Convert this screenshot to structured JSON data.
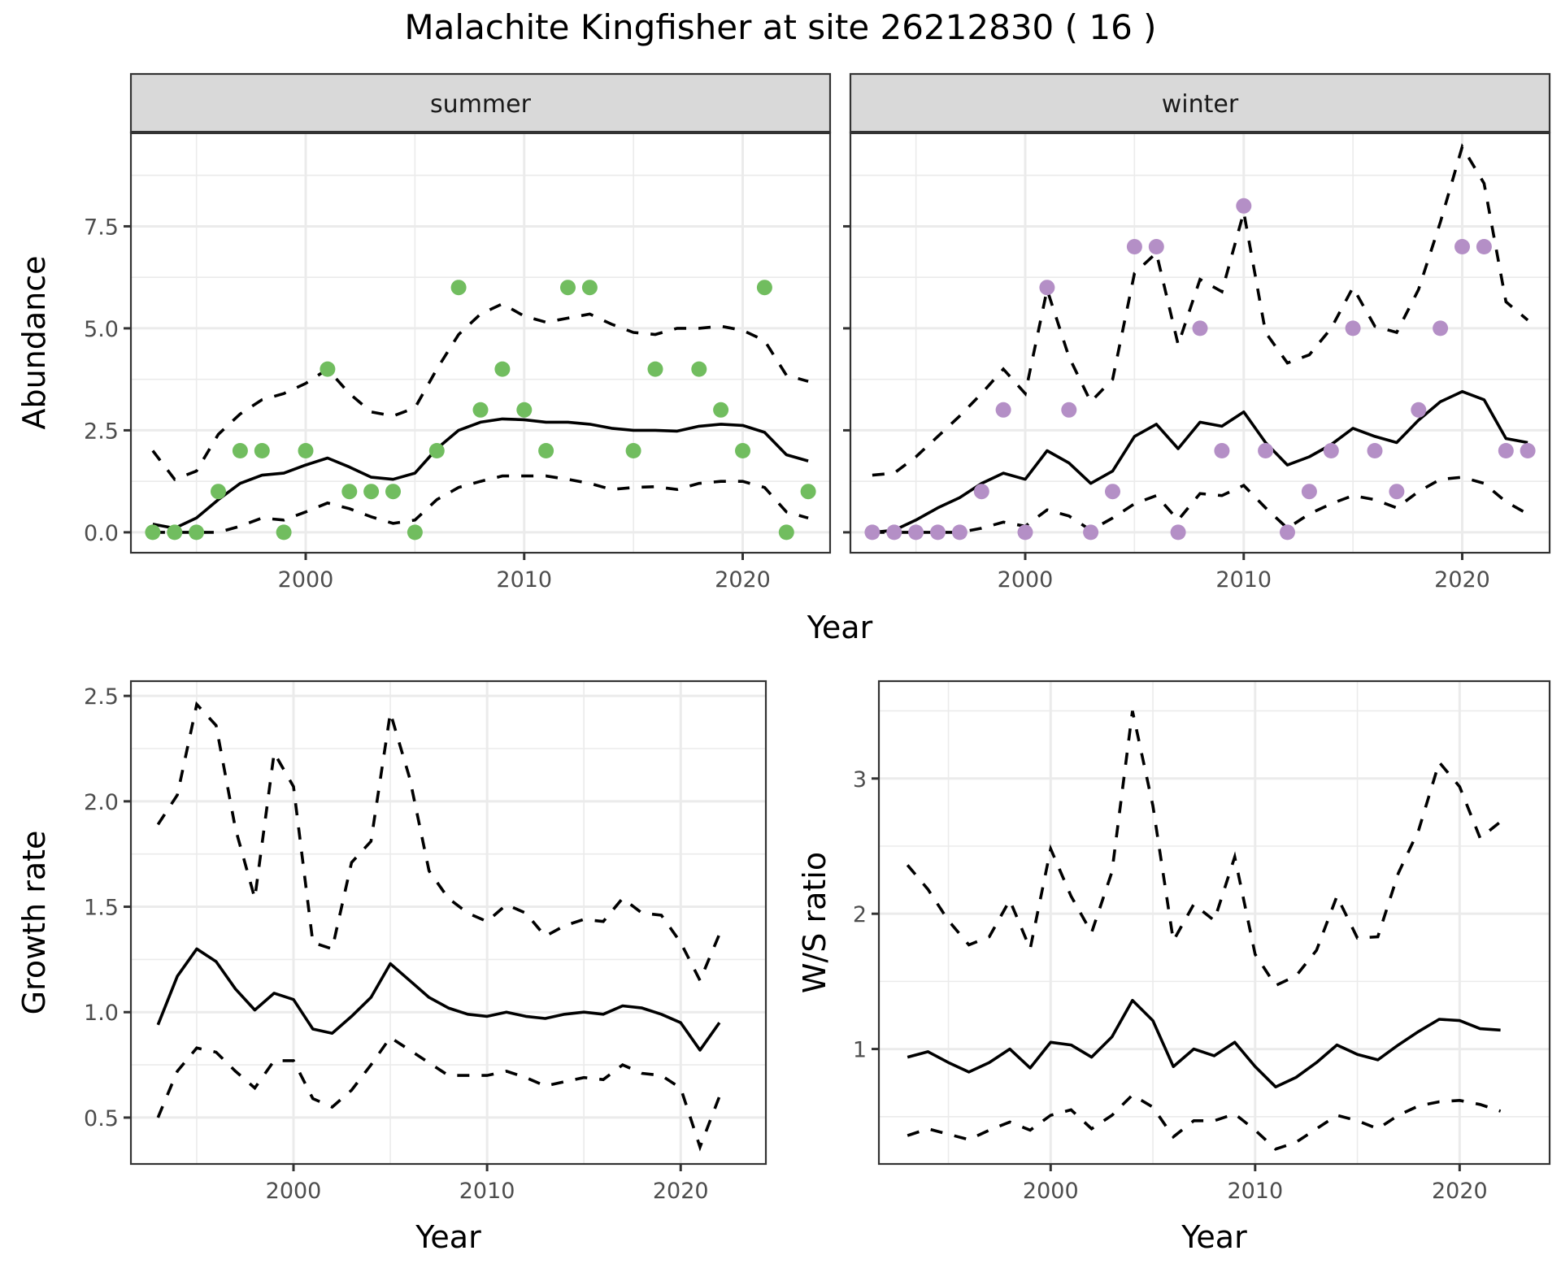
{
  "chart_data": {
    "title": "Malachite Kingfisher at site 26212830 ( 16 )",
    "panels": [
      {
        "id": "summer",
        "type": "scatter+line",
        "strip_label": "summer",
        "xlabel": "",
        "ylabel": "Abundance",
        "xlim": [
          1992,
          2024
        ],
        "ylim": [
          -0.5,
          9.8
        ],
        "xticks": [
          2000,
          2010,
          2020
        ],
        "yticks": [
          0.0,
          2.5,
          5.0,
          7.5
        ],
        "ytick_labels": [
          "0.0",
          "2.5",
          "5.0",
          "7.5"
        ],
        "point_color": "#71bd5f",
        "x": [
          1993,
          1994,
          1995,
          1996,
          1997,
          1998,
          1999,
          2000,
          2001,
          2002,
          2003,
          2004,
          2005,
          2006,
          2007,
          2008,
          2009,
          2010,
          2011,
          2012,
          2013,
          2014,
          2015,
          2016,
          2017,
          2018,
          2019,
          2020,
          2021,
          2022,
          2023
        ],
        "points": [
          0,
          0,
          0,
          1,
          2,
          2,
          0,
          2,
          4,
          1,
          1,
          1,
          0,
          2,
          6,
          3,
          4,
          3,
          2,
          6,
          6,
          null,
          2,
          4,
          null,
          4,
          3,
          2,
          6,
          0,
          1
        ],
        "series": [
          {
            "name": "estimate",
            "style": "solid",
            "values": [
              0.2,
              0.1,
              0.35,
              0.8,
              1.2,
              1.4,
              1.45,
              1.65,
              1.82,
              1.6,
              1.35,
              1.3,
              1.45,
              2.05,
              2.5,
              2.7,
              2.78,
              2.76,
              2.7,
              2.7,
              2.65,
              2.55,
              2.5,
              2.5,
              2.48,
              2.6,
              2.65,
              2.62,
              2.45,
              1.9,
              1.75
            ]
          },
          {
            "name": "upper",
            "style": "dashed",
            "values": [
              2.0,
              1.3,
              1.5,
              2.4,
              2.9,
              3.25,
              3.4,
              3.65,
              4.0,
              3.4,
              2.95,
              2.85,
              3.05,
              4.0,
              4.85,
              5.35,
              5.6,
              5.3,
              5.15,
              5.25,
              5.35,
              5.1,
              4.9,
              4.85,
              5.0,
              5.0,
              5.05,
              4.95,
              4.7,
              3.85,
              3.7
            ]
          },
          {
            "name": "lower",
            "style": "dashed",
            "values": [
              0.0,
              0.0,
              0.0,
              0.0,
              0.15,
              0.35,
              0.3,
              0.5,
              0.72,
              0.58,
              0.38,
              0.22,
              0.3,
              0.8,
              1.1,
              1.25,
              1.38,
              1.38,
              1.38,
              1.3,
              1.2,
              1.05,
              1.1,
              1.12,
              1.05,
              1.2,
              1.25,
              1.25,
              1.1,
              0.5,
              0.35
            ]
          }
        ]
      },
      {
        "id": "winter",
        "type": "scatter+line",
        "strip_label": "winter",
        "xlabel": "",
        "ylabel": "",
        "xlim": [
          1992,
          2024
        ],
        "ylim": [
          -0.5,
          9.8
        ],
        "xticks": [
          2000,
          2010,
          2020
        ],
        "yticks": [
          0.0,
          2.5,
          5.0,
          7.5
        ],
        "point_color": "#b48fc6",
        "x": [
          1993,
          1994,
          1995,
          1996,
          1997,
          1998,
          1999,
          2000,
          2001,
          2002,
          2003,
          2004,
          2005,
          2006,
          2007,
          2008,
          2009,
          2010,
          2011,
          2012,
          2013,
          2014,
          2015,
          2016,
          2017,
          2018,
          2019,
          2020,
          2021,
          2022,
          2023
        ],
        "points": [
          0,
          0,
          0,
          0,
          0,
          1,
          3,
          0,
          6,
          3,
          0,
          1,
          7,
          7,
          0,
          5,
          2,
          8,
          2,
          0,
          1,
          2,
          5,
          2,
          1,
          3,
          5,
          7,
          7,
          2,
          2
        ],
        "series": [
          {
            "name": "estimate",
            "style": "solid",
            "values": [
              0.0,
              0.05,
              0.3,
              0.6,
              0.85,
              1.2,
              1.45,
              1.3,
              2.0,
              1.7,
              1.2,
              1.5,
              2.35,
              2.65,
              2.05,
              2.7,
              2.6,
              2.95,
              2.2,
              1.65,
              1.85,
              2.15,
              2.55,
              2.35,
              2.2,
              2.75,
              3.2,
              3.45,
              3.25,
              2.3,
              2.2
            ]
          },
          {
            "name": "upper",
            "style": "dashed",
            "values": [
              1.4,
              1.45,
              1.85,
              2.35,
              2.85,
              3.4,
              4.0,
              3.4,
              5.95,
              4.3,
              3.2,
              3.75,
              6.35,
              6.85,
              4.6,
              6.2,
              5.9,
              7.85,
              4.9,
              4.15,
              4.35,
              5.0,
              6.0,
              5.05,
              4.9,
              5.95,
              7.6,
              9.45,
              8.55,
              5.65,
              5.2
            ]
          },
          {
            "name": "lower",
            "style": "dashed",
            "values": [
              0.0,
              0.0,
              0.0,
              0.0,
              0.0,
              0.1,
              0.25,
              0.15,
              0.55,
              0.4,
              0.05,
              0.35,
              0.7,
              0.9,
              0.3,
              0.95,
              0.9,
              1.15,
              0.6,
              0.1,
              0.45,
              0.7,
              0.9,
              0.8,
              0.6,
              1.0,
              1.3,
              1.35,
              1.2,
              0.75,
              0.45
            ]
          }
        ]
      },
      {
        "id": "growth",
        "type": "line",
        "xlabel": "Year",
        "ylabel": "Growth rate",
        "xlim": [
          1991.6,
          2024.4
        ],
        "ylim": [
          0.28,
          2.57
        ],
        "xticks": [
          2000,
          2010,
          2020
        ],
        "yticks": [
          0.5,
          1.0,
          1.5,
          2.0,
          2.5
        ],
        "ytick_labels": [
          "0.5",
          "1.0",
          "1.5",
          "2.0",
          "2.5"
        ],
        "x": [
          1993,
          1994,
          1995,
          1996,
          1997,
          1998,
          1999,
          2000,
          2001,
          2002,
          2003,
          2004,
          2005,
          2006,
          2007,
          2008,
          2009,
          2010,
          2011,
          2012,
          2013,
          2014,
          2015,
          2016,
          2017,
          2018,
          2019,
          2020,
          2021,
          2022
        ],
        "series": [
          {
            "name": "estimate",
            "style": "solid",
            "values": [
              0.94,
              1.17,
              1.3,
              1.24,
              1.11,
              1.01,
              1.09,
              1.06,
              0.92,
              0.9,
              0.98,
              1.07,
              1.23,
              1.15,
              1.07,
              1.02,
              0.99,
              0.98,
              1.0,
              0.98,
              0.97,
              0.99,
              1.0,
              0.99,
              1.03,
              1.02,
              0.99,
              0.95,
              0.82,
              0.95
            ]
          },
          {
            "name": "upper",
            "style": "dashed",
            "values": [
              1.89,
              2.03,
              2.46,
              2.36,
              1.87,
              1.54,
              2.23,
              2.07,
              1.33,
              1.3,
              1.71,
              1.81,
              2.42,
              2.11,
              1.67,
              1.54,
              1.47,
              1.43,
              1.51,
              1.47,
              1.36,
              1.41,
              1.44,
              1.43,
              1.54,
              1.47,
              1.46,
              1.33,
              1.15,
              1.37
            ]
          },
          {
            "name": "lower",
            "style": "dashed",
            "values": [
              0.5,
              0.72,
              0.83,
              0.81,
              0.72,
              0.64,
              0.77,
              0.77,
              0.59,
              0.55,
              0.63,
              0.75,
              0.88,
              0.82,
              0.76,
              0.7,
              0.7,
              0.7,
              0.72,
              0.69,
              0.65,
              0.67,
              0.69,
              0.68,
              0.75,
              0.71,
              0.7,
              0.64,
              0.36,
              0.6
            ]
          }
        ]
      },
      {
        "id": "ws_ratio",
        "type": "line",
        "xlabel": "Year",
        "ylabel": "W/S ratio",
        "xlim": [
          1991.6,
          2024.4
        ],
        "ylim": [
          0.15,
          3.72
        ],
        "xticks": [
          2000,
          2010,
          2020
        ],
        "yticks": [
          1,
          2,
          3
        ],
        "ytick_labels": [
          "1",
          "2",
          "3"
        ],
        "x": [
          1993,
          1994,
          1995,
          1996,
          1997,
          1998,
          1999,
          2000,
          2001,
          2002,
          2003,
          2004,
          2005,
          2006,
          2007,
          2008,
          2009,
          2010,
          2011,
          2012,
          2013,
          2014,
          2015,
          2016,
          2017,
          2018,
          2019,
          2020,
          2021,
          2022
        ],
        "series": [
          {
            "name": "estimate",
            "style": "solid",
            "values": [
              0.94,
              0.98,
              0.9,
              0.83,
              0.9,
              1.0,
              0.86,
              1.05,
              1.03,
              0.94,
              1.09,
              1.36,
              1.21,
              0.87,
              1.0,
              0.95,
              1.05,
              0.87,
              0.72,
              0.79,
              0.9,
              1.03,
              0.96,
              0.92,
              1.03,
              1.13,
              1.22,
              1.21,
              1.15,
              1.14
            ]
          },
          {
            "name": "upper",
            "style": "dashed",
            "values": [
              2.36,
              2.18,
              1.95,
              1.77,
              1.83,
              2.1,
              1.74,
              2.48,
              2.13,
              1.86,
              2.31,
              3.5,
              2.8,
              1.8,
              2.07,
              1.95,
              2.42,
              1.7,
              1.47,
              1.54,
              1.73,
              2.13,
              1.82,
              1.83,
              2.3,
              2.62,
              3.12,
              2.94,
              2.56,
              2.68
            ]
          },
          {
            "name": "lower",
            "style": "dashed",
            "values": [
              0.36,
              0.41,
              0.37,
              0.33,
              0.4,
              0.46,
              0.4,
              0.51,
              0.55,
              0.41,
              0.51,
              0.66,
              0.57,
              0.35,
              0.47,
              0.47,
              0.52,
              0.4,
              0.26,
              0.31,
              0.41,
              0.51,
              0.47,
              0.41,
              0.51,
              0.58,
              0.61,
              0.62,
              0.59,
              0.54
            ]
          }
        ]
      }
    ],
    "shared_xlabel_top": "Year",
    "grid": true,
    "legend": "none"
  }
}
